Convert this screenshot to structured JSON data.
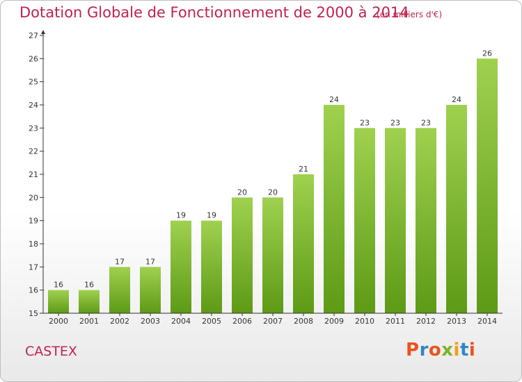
{
  "page": {
    "title": "Dotation Globale de Fonctionnement de 2000 à 2014",
    "subtitle": "(en milliers d'€)",
    "commune": "CASTEX",
    "logo_text": "Proxiti"
  },
  "colors": {
    "title": "#c0224f",
    "bar_top": "#9fd14f",
    "bar_bottom": "#5d9a16",
    "axis": "#333333",
    "grid_dash": "#aaaaaa",
    "logo_letters": [
      "#e8541d",
      "#2f86c8",
      "#e8541d",
      "#7cb32b",
      "#f0a010",
      "#2f86c8",
      "#e8541d"
    ]
  },
  "chart_data": {
    "type": "bar",
    "title": "Dotation Globale de Fonctionnement de 2000 à 2014",
    "subtitle": "(en milliers d'€)",
    "categories": [
      "2000",
      "2001",
      "2002",
      "2003",
      "2004",
      "2005",
      "2006",
      "2007",
      "2008",
      "2009",
      "2010",
      "2011",
      "2012",
      "2013",
      "2014"
    ],
    "values": [
      16,
      16,
      17,
      17,
      19,
      19,
      20,
      20,
      21,
      24,
      23,
      23,
      23,
      24,
      26
    ],
    "ylim": [
      15,
      27
    ],
    "yticks": [
      15,
      16,
      17,
      18,
      19,
      20,
      21,
      22,
      23,
      24,
      25,
      26,
      27
    ],
    "data_labels": true,
    "grid": "dashed-ticks",
    "legend": "none"
  }
}
